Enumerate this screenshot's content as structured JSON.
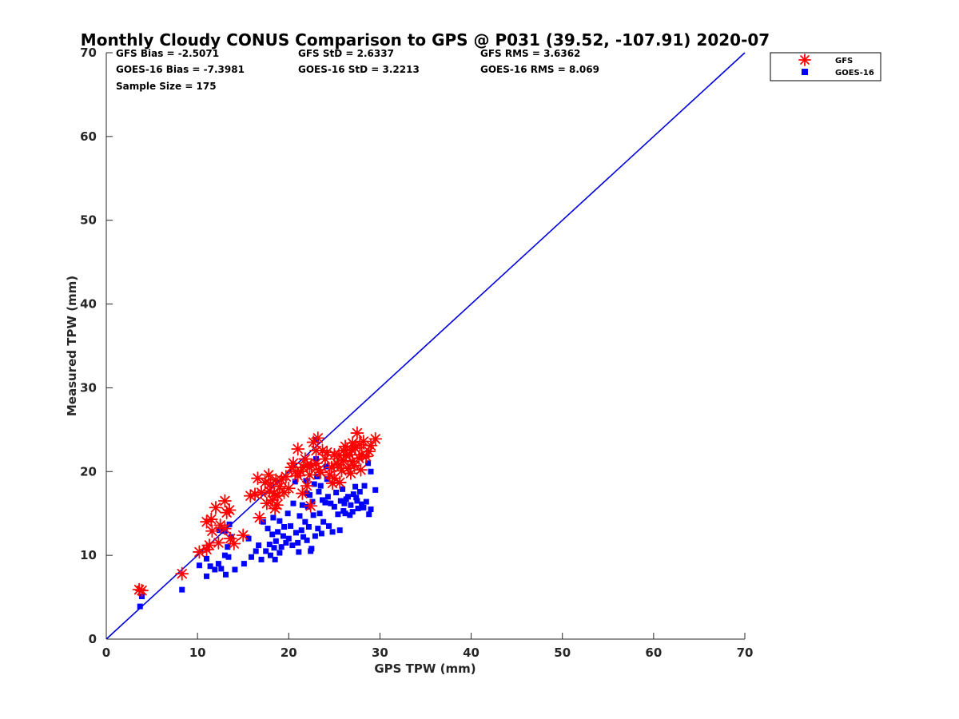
{
  "chart_data": {
    "type": "scatter",
    "title": "Monthly Cloudy CONUS Comparison to GPS @ P031 (39.52, -107.91) 2020-07",
    "xlabel": "GPS TPW (mm)",
    "ylabel": "Measured TPW (mm)",
    "xlim": [
      0,
      70
    ],
    "ylim": [
      0,
      70
    ],
    "xticks": [
      "0",
      "10",
      "20",
      "30",
      "40",
      "50",
      "60",
      "70"
    ],
    "yticks": [
      "0",
      "10",
      "20",
      "30",
      "40",
      "50",
      "60",
      "70"
    ],
    "reference_line": {
      "x": [
        0,
        70
      ],
      "y": [
        0,
        70
      ],
      "color": "#0000dd"
    },
    "stats": {
      "gfs_bias": "GFS Bias = -2.5071",
      "gfs_std": "GFS StD = 2.6337",
      "gfs_rms": "GFS RMS = 3.6362",
      "goes_bias": "GOES-16 Bias = -7.3981",
      "goes_std": "GOES-16 StD = 3.2213",
      "goes_rms": "GOES-16 RMS = 8.069",
      "sample_size": "Sample Size = 175"
    },
    "legend": {
      "position": "outside-top-right",
      "entries": [
        "GFS",
        "GOES-16"
      ]
    },
    "series": [
      {
        "name": "GFS",
        "marker": "asterisk",
        "color": "#ff0000",
        "points": [
          [
            3.6,
            5.9
          ],
          [
            3.9,
            5.8
          ],
          [
            8.3,
            7.8
          ],
          [
            10.2,
            10.4
          ],
          [
            11.0,
            10.7
          ],
          [
            11.3,
            11.2
          ],
          [
            11.6,
            12.9
          ],
          [
            11.0,
            14.0
          ],
          [
            11.5,
            14.3
          ],
          [
            12.0,
            15.7
          ],
          [
            12.3,
            11.5
          ],
          [
            12.5,
            13.6
          ],
          [
            13.0,
            16.5
          ],
          [
            13.2,
            15.1
          ],
          [
            13.5,
            15.4
          ],
          [
            13.0,
            13.2
          ],
          [
            13.6,
            12.0
          ],
          [
            14.0,
            11.4
          ],
          [
            15.0,
            12.4
          ],
          [
            15.8,
            17.1
          ],
          [
            16.3,
            17.3
          ],
          [
            16.6,
            19.2
          ],
          [
            16.8,
            14.5
          ],
          [
            17.0,
            17.5
          ],
          [
            17.4,
            18.7
          ],
          [
            17.6,
            16.2
          ],
          [
            17.8,
            19.6
          ],
          [
            17.9,
            17.7
          ],
          [
            18.0,
            18.5
          ],
          [
            18.2,
            16.6
          ],
          [
            18.4,
            17.4
          ],
          [
            18.5,
            15.6
          ],
          [
            18.6,
            19.0
          ],
          [
            18.7,
            16.0
          ],
          [
            18.8,
            17.1
          ],
          [
            19.0,
            18.2
          ],
          [
            19.2,
            19.0
          ],
          [
            19.5,
            17.5
          ],
          [
            19.7,
            19.4
          ],
          [
            20.0,
            18.0
          ],
          [
            20.3,
            20.5
          ],
          [
            20.5,
            21.0
          ],
          [
            20.7,
            20.0
          ],
          [
            21.0,
            22.7
          ],
          [
            21.0,
            19.5
          ],
          [
            21.3,
            20.0
          ],
          [
            21.5,
            17.4
          ],
          [
            21.6,
            20.5
          ],
          [
            21.8,
            21.5
          ],
          [
            22.0,
            18.3
          ],
          [
            22.0,
            20.8
          ],
          [
            22.3,
            19.6
          ],
          [
            22.4,
            15.9
          ],
          [
            22.5,
            20.7
          ],
          [
            22.7,
            23.5
          ],
          [
            23.0,
            22.5
          ],
          [
            23.0,
            21.0
          ],
          [
            23.2,
            24.0
          ],
          [
            23.3,
            20.2
          ],
          [
            23.5,
            19.9
          ],
          [
            23.7,
            22.5
          ],
          [
            24.0,
            21.5
          ],
          [
            24.2,
            22.3
          ],
          [
            24.5,
            19.6
          ],
          [
            24.7,
            20.5
          ],
          [
            25.0,
            22.0
          ],
          [
            25.0,
            19.2
          ],
          [
            25.3,
            21.0
          ],
          [
            25.5,
            22.0
          ],
          [
            25.6,
            18.7
          ],
          [
            25.8,
            20.1
          ],
          [
            26.0,
            22.5
          ],
          [
            26.0,
            21.3
          ],
          [
            26.2,
            23.0
          ],
          [
            26.5,
            20.4
          ],
          [
            26.7,
            22.0
          ],
          [
            26.8,
            19.8
          ],
          [
            27.0,
            21.2
          ],
          [
            27.0,
            23.4
          ],
          [
            27.2,
            20.7
          ],
          [
            27.3,
            22.8
          ],
          [
            27.5,
            24.6
          ],
          [
            27.7,
            21.6
          ],
          [
            27.8,
            23.2
          ],
          [
            28.0,
            22.0
          ],
          [
            28.2,
            23.6
          ],
          [
            28.5,
            21.8
          ],
          [
            28.8,
            22.4
          ],
          [
            29.0,
            23.1
          ],
          [
            29.5,
            23.9
          ],
          [
            26.3,
            21.9
          ],
          [
            25.4,
            20.8
          ],
          [
            24.8,
            18.6
          ],
          [
            26.9,
            22.6
          ],
          [
            27.9,
            20.2
          ]
        ]
      },
      {
        "name": "GOES-16",
        "marker": "square",
        "color": "#0000ff",
        "points": [
          [
            3.7,
            3.9
          ],
          [
            3.9,
            5.1
          ],
          [
            8.3,
            5.9
          ],
          [
            10.2,
            8.8
          ],
          [
            11.0,
            7.5
          ],
          [
            11.0,
            9.6
          ],
          [
            11.4,
            8.7
          ],
          [
            11.9,
            8.3
          ],
          [
            12.3,
            9.0
          ],
          [
            12.4,
            13.0
          ],
          [
            12.6,
            8.4
          ],
          [
            13.0,
            10.0
          ],
          [
            13.0,
            12.9
          ],
          [
            13.1,
            7.7
          ],
          [
            13.3,
            11.0
          ],
          [
            13.4,
            9.8
          ],
          [
            13.5,
            13.7
          ],
          [
            13.7,
            12.2
          ],
          [
            14.1,
            8.3
          ],
          [
            15.1,
            9.0
          ],
          [
            15.6,
            12.0
          ],
          [
            15.9,
            9.8
          ],
          [
            16.4,
            10.5
          ],
          [
            16.7,
            11.2
          ],
          [
            17.0,
            9.5
          ],
          [
            17.2,
            14.0
          ],
          [
            17.5,
            10.5
          ],
          [
            17.7,
            13.2
          ],
          [
            17.9,
            11.3
          ],
          [
            18.0,
            10.0
          ],
          [
            18.2,
            12.5
          ],
          [
            18.3,
            14.5
          ],
          [
            18.4,
            10.9
          ],
          [
            18.5,
            9.5
          ],
          [
            18.6,
            11.7
          ],
          [
            18.8,
            12.8
          ],
          [
            19.0,
            10.3
          ],
          [
            19.0,
            14.1
          ],
          [
            19.2,
            11.0
          ],
          [
            19.4,
            12.3
          ],
          [
            19.5,
            13.4
          ],
          [
            19.7,
            11.5
          ],
          [
            19.9,
            15.0
          ],
          [
            20.0,
            12.0
          ],
          [
            20.2,
            13.5
          ],
          [
            20.4,
            11.2
          ],
          [
            20.5,
            16.2
          ],
          [
            20.7,
            18.8
          ],
          [
            20.8,
            12.7
          ],
          [
            21.0,
            11.5
          ],
          [
            21.1,
            10.4
          ],
          [
            21.2,
            14.7
          ],
          [
            21.4,
            13.0
          ],
          [
            21.5,
            16.0
          ],
          [
            21.6,
            12.2
          ],
          [
            21.8,
            14.0
          ],
          [
            21.9,
            18.9
          ],
          [
            22.0,
            11.8
          ],
          [
            22.1,
            15.8
          ],
          [
            22.2,
            13.4
          ],
          [
            22.3,
            17.2
          ],
          [
            22.4,
            10.5
          ],
          [
            22.5,
            10.8
          ],
          [
            22.6,
            16.4
          ],
          [
            22.7,
            14.8
          ],
          [
            22.8,
            18.5
          ],
          [
            22.9,
            12.3
          ],
          [
            23.0,
            21.5
          ],
          [
            23.0,
            23.8
          ],
          [
            23.1,
            19.4
          ],
          [
            23.2,
            13.2
          ],
          [
            23.3,
            17.6
          ],
          [
            23.4,
            15.0
          ],
          [
            23.5,
            18.3
          ],
          [
            23.6,
            12.6
          ],
          [
            23.8,
            14.0
          ],
          [
            24.0,
            16.3
          ],
          [
            24.1,
            20.6
          ],
          [
            24.2,
            19.1
          ],
          [
            24.4,
            13.5
          ],
          [
            24.6,
            16.2
          ],
          [
            24.8,
            12.8
          ],
          [
            25.0,
            15.8
          ],
          [
            25.2,
            17.5
          ],
          [
            25.4,
            14.9
          ],
          [
            25.6,
            13.0
          ],
          [
            25.7,
            16.5
          ],
          [
            25.9,
            17.9
          ],
          [
            26.0,
            15.3
          ],
          [
            26.2,
            15.0
          ],
          [
            26.3,
            16.7
          ],
          [
            26.5,
            17.0
          ],
          [
            26.7,
            14.8
          ],
          [
            26.8,
            16.0
          ],
          [
            27.0,
            15.2
          ],
          [
            27.1,
            17.3
          ],
          [
            27.3,
            18.2
          ],
          [
            27.5,
            16.5
          ],
          [
            27.6,
            15.6
          ],
          [
            27.8,
            17.6
          ],
          [
            28.0,
            16.1
          ],
          [
            28.3,
            18.3
          ],
          [
            28.5,
            16.4
          ],
          [
            28.7,
            21.0
          ],
          [
            28.8,
            14.9
          ],
          [
            29.0,
            20.0
          ],
          [
            29.0,
            15.5
          ],
          [
            29.5,
            17.8
          ],
          [
            24.3,
            17.0
          ],
          [
            22.0,
            17.4
          ],
          [
            23.7,
            16.6
          ],
          [
            26.1,
            16.2
          ],
          [
            27.4,
            16.9
          ],
          [
            28.2,
            15.7
          ]
        ]
      }
    ]
  }
}
